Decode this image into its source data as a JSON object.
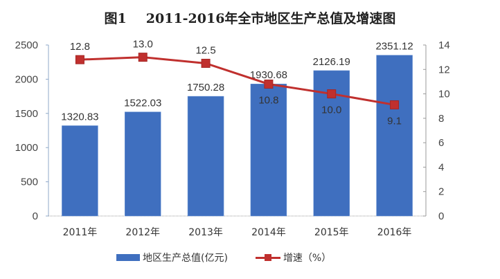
{
  "title": {
    "figure": "图1",
    "text": "2011-2016年全市地区生产总值及增速图"
  },
  "legend": {
    "bar_label": "地区生产总值(亿元)",
    "line_label": "增速（%）"
  },
  "axes": {
    "left_ticks": [
      "0",
      "500",
      "1000",
      "1500",
      "2000",
      "2500"
    ],
    "right_ticks": [
      "0",
      "2",
      "4",
      "6",
      "8",
      "10",
      "12",
      "14"
    ]
  },
  "categories": [
    "2011年",
    "2012年",
    "2013年",
    "2014年",
    "2015年",
    "2016年"
  ],
  "bar_labels": [
    "1320.83",
    "1522.03",
    "1750.28",
    "1930.68",
    "2126.19",
    "2351.12"
  ],
  "line_labels": [
    "12.8",
    "13.0",
    "12.5",
    "10.8",
    "10.0",
    "9.1"
  ],
  "colors": {
    "bar": "#3f6fbf",
    "line": "#c0302e"
  },
  "chart_data": {
    "type": "bar",
    "title": "图1 2011-2016年全市地区生产总值及增速图",
    "categories": [
      "2011年",
      "2012年",
      "2013年",
      "2014年",
      "2015年",
      "2016年"
    ],
    "series": [
      {
        "name": "地区生产总值(亿元)",
        "type": "bar",
        "axis": "left",
        "values": [
          1320.83,
          1522.03,
          1750.28,
          1930.68,
          2126.19,
          2351.12
        ]
      },
      {
        "name": "增速（%）",
        "type": "line",
        "axis": "right",
        "values": [
          12.8,
          13.0,
          12.5,
          10.8,
          10.0,
          9.1
        ]
      }
    ],
    "xlabel": "",
    "ylabel": "",
    "ylim": [
      0,
      2500
    ],
    "y2lim": [
      0,
      14
    ],
    "grid": false,
    "legend_position": "bottom"
  }
}
